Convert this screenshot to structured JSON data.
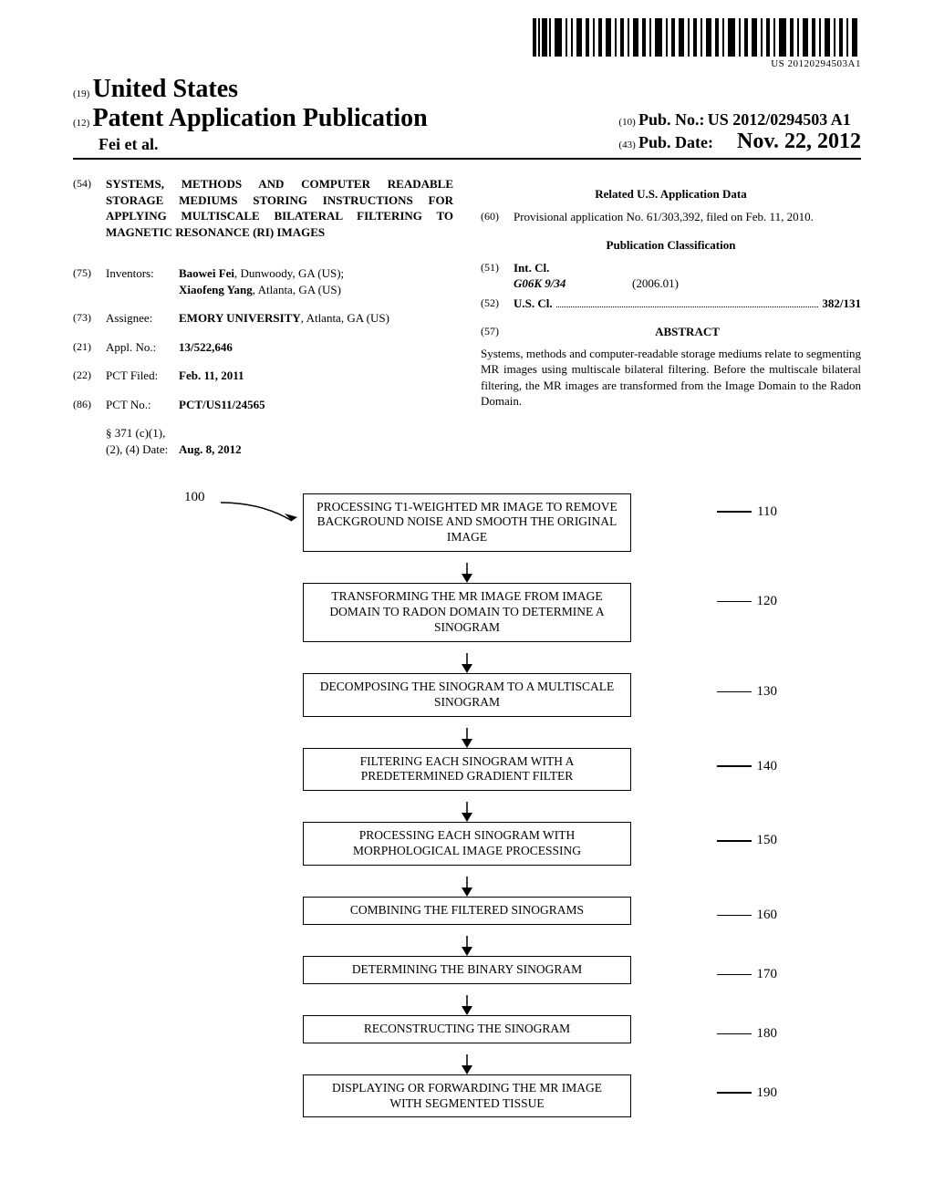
{
  "barcode_text": "US 20120294503A1",
  "header": {
    "kind19": "(19)",
    "country": "United States",
    "kind12": "(12)",
    "pub_type": "Patent Application Publication",
    "authors": "Fei et al.",
    "kind10": "(10)",
    "pub_num_label": "Pub. No.:",
    "pub_num_value": "US 2012/0294503 A1",
    "kind43": "(43)",
    "pub_date_label": "Pub. Date:",
    "pub_date_value": "Nov. 22, 2012"
  },
  "left": {
    "num54": "(54)",
    "title": "SYSTEMS, METHODS AND COMPUTER READABLE STORAGE MEDIUMS STORING INSTRUCTIONS FOR APPLYING MULTISCALE BILATERAL FILTERING TO MAGNETIC RESONANCE (RI) IMAGES",
    "num75": "(75)",
    "inventors_label": "Inventors:",
    "inventor1_name": "Baowei Fei",
    "inventor1_loc": ", Dunwoody, GA (US);",
    "inventor2_name": "Xiaofeng Yang",
    "inventor2_loc": ", Atlanta, GA (US)",
    "num73": "(73)",
    "assignee_label": "Assignee:",
    "assignee_name": "EMORY UNIVERSITY",
    "assignee_loc": ", Atlanta, GA (US)",
    "num21": "(21)",
    "applno_label": "Appl. No.:",
    "applno_value": "13/522,646",
    "num22": "(22)",
    "pctfiled_label": "PCT Filed:",
    "pctfiled_value": "Feb. 11, 2011",
    "num86": "(86)",
    "pctno_label": "PCT No.:",
    "pctno_value": "PCT/US11/24565",
    "sect371_label": "§ 371 (c)(1),\n(2), (4) Date:",
    "sect371_value": "Aug. 8, 2012"
  },
  "right": {
    "related_head": "Related U.S. Application Data",
    "num60": "(60)",
    "provisional": "Provisional application No. 61/303,392, filed on Feb. 11, 2010.",
    "class_head": "Publication Classification",
    "num51": "(51)",
    "intcl_label": "Int. Cl.",
    "intcl_code": "G06K 9/34",
    "intcl_date": "(2006.01)",
    "num52": "(52)",
    "uscl_label": "U.S. Cl.",
    "uscl_value": "382/131",
    "num57": "(57)",
    "abstract_label": "ABSTRACT",
    "abstract_text": "Systems, methods and computer-readable storage mediums relate to segmenting MR images using multiscale bilateral filtering. Before the multiscale bilateral filtering, the MR images are transformed from the Image Domain to the Radon Domain."
  },
  "flowchart": {
    "label100": "100",
    "steps": [
      {
        "num": "110",
        "text": "PROCESSING T1-WEIGHTED MR IMAGE TO REMOVE BACKGROUND NOISE AND SMOOTH THE ORIGINAL IMAGE"
      },
      {
        "num": "120",
        "text": "TRANSFORMING THE MR IMAGE FROM IMAGE DOMAIN TO RADON DOMAIN TO DETERMINE A SINOGRAM"
      },
      {
        "num": "130",
        "text": "DECOMPOSING THE SINOGRAM TO A MULTISCALE SINOGRAM"
      },
      {
        "num": "140",
        "text": "FILTERING EACH SINOGRAM WITH A PREDETERMINED GRADIENT FILTER"
      },
      {
        "num": "150",
        "text": "PROCESSING EACH SINOGRAM WITH MORPHOLOGICAL IMAGE PROCESSING"
      },
      {
        "num": "160",
        "text": "COMBINING THE FILTERED SINOGRAMS"
      },
      {
        "num": "170",
        "text": "DETERMINING THE BINARY SINOGRAM"
      },
      {
        "num": "180",
        "text": "RECONSTRUCTING THE SINOGRAM"
      },
      {
        "num": "190",
        "text": "DISPLAYING OR FORWARDING THE MR IMAGE WITH SEGMENTED TISSUE"
      }
    ]
  }
}
